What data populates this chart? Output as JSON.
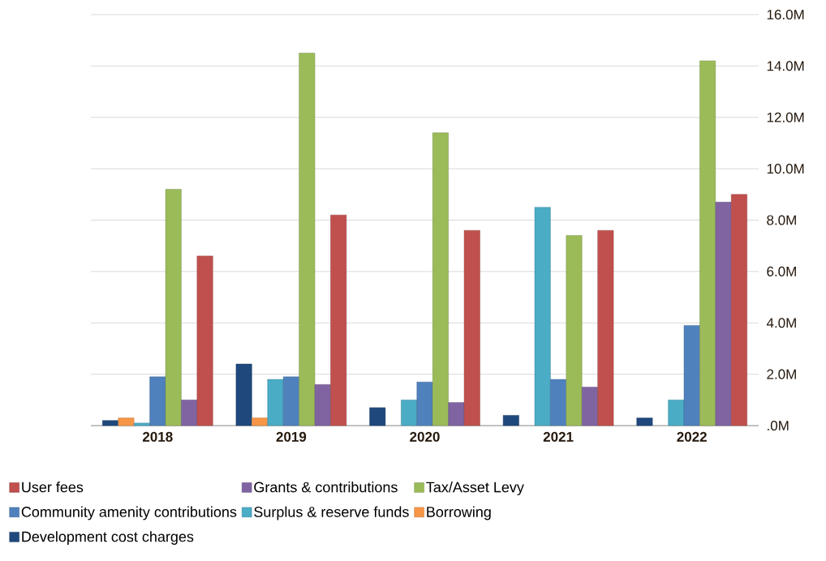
{
  "chart_data": {
    "type": "bar",
    "categories": [
      "2018",
      "2019",
      "2020",
      "2021",
      "2022"
    ],
    "series": [
      {
        "name": "Development cost charges",
        "color": "#1f497d",
        "values": [
          0.2,
          2.4,
          0.7,
          0.4,
          0.3
        ]
      },
      {
        "name": "Borrowing",
        "color": "#f79646",
        "values": [
          0.3,
          0.3,
          null,
          null,
          null
        ]
      },
      {
        "name": "Surplus & reserve funds",
        "color": "#4bacc6",
        "values": [
          0.1,
          1.8,
          1.0,
          8.5,
          1.0
        ]
      },
      {
        "name": "Community amenity contributions",
        "color": "#4f81bd",
        "values": [
          1.9,
          1.9,
          1.7,
          1.8,
          3.9
        ]
      },
      {
        "name": "Tax/Asset Levy",
        "color": "#9bbb59",
        "values": [
          9.2,
          14.5,
          11.4,
          7.4,
          14.2
        ]
      },
      {
        "name": "Grants & contributions",
        "color": "#8064a2",
        "values": [
          1.0,
          1.6,
          0.9,
          1.5,
          8.7
        ]
      },
      {
        "name": "User fees",
        "color": "#c0504d",
        "values": [
          6.6,
          8.2,
          7.6,
          7.6,
          9.0
        ]
      }
    ],
    "ylim": [
      0,
      16
    ],
    "yticks": [
      {
        "value": 0,
        "label": ".0M"
      },
      {
        "value": 2,
        "label": "2.0M"
      },
      {
        "value": 4,
        "label": "4.0M"
      },
      {
        "value": 6,
        "label": "6.0M"
      },
      {
        "value": 8,
        "label": "8.0M"
      },
      {
        "value": 10,
        "label": "10.0M"
      },
      {
        "value": 12,
        "label": "12.0M"
      },
      {
        "value": 14,
        "label": "14.0M"
      },
      {
        "value": 16,
        "label": "16.0M"
      }
    ],
    "grid": "y",
    "legend": "bottom"
  }
}
